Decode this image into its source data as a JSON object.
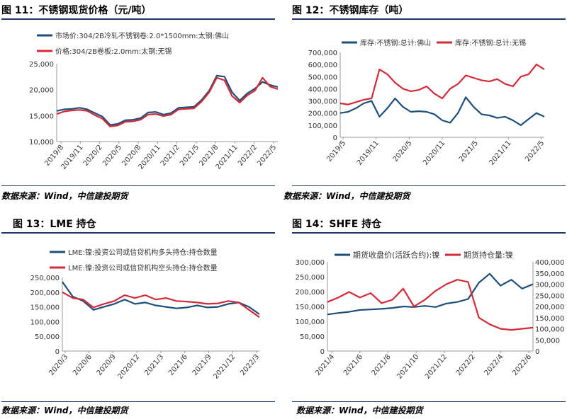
{
  "colors": {
    "navy": "#1f4e79",
    "red": "#d32a3a",
    "rule": "#1f3864"
  },
  "charts": [
    {
      "panel_title": "图 11：不锈钢现货价格（元/吨）",
      "source": "数据来源：Wind，中信建投期货",
      "chart_data": {
        "type": "line",
        "title": "",
        "xlabel": "",
        "ylabel": "",
        "x_ticks": [
          "2019/8",
          "2019/11",
          "2020/2",
          "2020/5",
          "2020/8",
          "2020/11",
          "2021/2",
          "2021/5",
          "2021/8",
          "2021/11",
          "2022/2",
          "2022/5"
        ],
        "ylim": [
          10000,
          25000
        ],
        "y_ticks": [
          "10,000",
          "15,000",
          "20,000",
          "25,000"
        ],
        "legend_position": "top",
        "grid": false,
        "series": [
          {
            "name": "市场价:304/2B冷轧不锈钢卷:2.0*1500mm:太钢:佛山",
            "color": "#1f4e79",
            "axis": "left",
            "values": [
              15900,
              16200,
              16300,
              16500,
              16200,
              15500,
              14800,
              13200,
              13400,
              14100,
              14200,
              14500,
              15600,
              15700,
              15200,
              15500,
              16500,
              16600,
              16700,
              18000,
              19800,
              22700,
              22500,
              19500,
              17900,
              19300,
              20200,
              21500,
              20900,
              20500
            ]
          },
          {
            "name": "价格:304/2B卷板:2.0mm:太钢:无锡",
            "color": "#d32a3a",
            "axis": "left",
            "values": [
              15300,
              15800,
              16000,
              16100,
              15900,
              15100,
              14400,
              12900,
              13100,
              13800,
              13900,
              14200,
              15200,
              15300,
              14900,
              15200,
              16200,
              16300,
              16400,
              17700,
              19500,
              22300,
              21800,
              18800,
              17500,
              18900,
              19800,
              22300,
              20600,
              20100
            ]
          }
        ]
      }
    },
    {
      "panel_title": "图 12：不锈钢库存（吨）",
      "source": "数据来源：Wind，中信建投期货",
      "chart_data": {
        "type": "line",
        "title": "",
        "xlabel": "",
        "ylabel": "",
        "x_ticks": [
          "2019/5",
          "2019/11",
          "2020/5",
          "2020/11",
          "2021/5",
          "2021/11",
          "2022/5"
        ],
        "ylim": [
          0,
          700000
        ],
        "y_ticks": [
          "0",
          "100,000",
          "200,000",
          "300,000",
          "400,000",
          "500,000",
          "600,000",
          "700,000"
        ],
        "legend_position": "top",
        "grid": false,
        "series": [
          {
            "name": "库存:不锈钢:总计:佛山",
            "color": "#1f4e79",
            "axis": "left",
            "values": [
              200000,
              210000,
              240000,
              280000,
              300000,
              170000,
              240000,
              320000,
              250000,
              210000,
              215000,
              210000,
              190000,
              140000,
              120000,
              200000,
              330000,
              250000,
              190000,
              180000,
              160000,
              170000,
              140000,
              100000,
              150000,
              200000,
              170000
            ]
          },
          {
            "name": "库存:不锈钢:总计:无锡",
            "color": "#d32a3a",
            "axis": "left",
            "values": [
              280000,
              270000,
              290000,
              310000,
              320000,
              560000,
              520000,
              450000,
              400000,
              380000,
              390000,
              420000,
              360000,
              320000,
              400000,
              440000,
              510000,
              490000,
              470000,
              460000,
              480000,
              440000,
              420000,
              500000,
              520000,
              600000,
              560000
            ]
          }
        ]
      }
    },
    {
      "panel_title": "图 13：LME 持仓",
      "source": "数据来源：Wind，中信建投期货",
      "chart_data": {
        "type": "line",
        "title": "",
        "xlabel": "",
        "ylabel": "",
        "x_ticks": [
          "2020/3",
          "2020/6",
          "2020/9",
          "2020/12",
          "2021/3",
          "2021/6",
          "2021/9",
          "2021/12",
          "2022/3"
        ],
        "ylim": [
          0,
          250000
        ],
        "y_ticks": [
          "0",
          "50,000",
          "100,000",
          "150,000",
          "200,000",
          "250,000"
        ],
        "legend_position": "top",
        "grid": false,
        "series": [
          {
            "name": "LME:镍:投资公司或信贷机构多头持仓:持仓数量",
            "color": "#1f4e79",
            "axis": "left",
            "values": [
              235000,
              185000,
              170000,
              140000,
              150000,
              160000,
              175000,
              160000,
              165000,
              155000,
              150000,
              145000,
              148000,
              155000,
              148000,
              150000,
              160000,
              165000,
              150000,
              125000
            ]
          },
          {
            "name": "LME:镍:投资公司或信贷机构空头持仓:持仓数量",
            "color": "#d32a3a",
            "axis": "left",
            "values": [
              200000,
              180000,
              175000,
              148000,
              160000,
              170000,
              190000,
              180000,
              190000,
              175000,
              180000,
              170000,
              168000,
              165000,
              160000,
              162000,
              170000,
              165000,
              140000,
              115000
            ]
          }
        ]
      }
    },
    {
      "panel_title": "图 14：SHFE 持仓",
      "source": "数据来源：Wind，中信建投期货",
      "chart_data": {
        "type": "line",
        "title": "",
        "xlabel": "",
        "ylabel": "",
        "x_ticks": [
          "2021/4",
          "2021/6",
          "2021/8",
          "2021/10",
          "2021/12",
          "2022/2",
          "2022/4",
          "2022/6"
        ],
        "ylim": [
          0,
          300000
        ],
        "y_ticks": [
          "0",
          "50,000",
          "100,000",
          "150,000",
          "200,000",
          "250,000",
          "300,000"
        ],
        "y2lim": [
          0,
          400000
        ],
        "y2_ticks": [
          "0",
          "50,000",
          "100,000",
          "150,000",
          "200,000",
          "250,000",
          "300,000",
          "350,000",
          "400,000"
        ],
        "legend_position": "top",
        "grid": false,
        "series": [
          {
            "name": "期货收盘价(活跃合约):镍",
            "color": "#1f4e79",
            "axis": "left",
            "values": [
              123000,
              128000,
              132000,
              138000,
              140000,
              142000,
              145000,
              150000,
              148000,
              152000,
              148000,
              160000,
              165000,
              175000,
              230000,
              260000,
              220000,
              240000,
              210000,
              225000
            ]
          },
          {
            "name": "期货持仓量:镍",
            "color": "#d32a3a",
            "axis": "right",
            "values": [
              220000,
              240000,
              265000,
              240000,
              260000,
              215000,
              230000,
              280000,
              200000,
              230000,
              270000,
              300000,
              320000,
              310000,
              150000,
              120000,
              100000,
              95000,
              100000,
              105000
            ]
          }
        ]
      }
    }
  ]
}
